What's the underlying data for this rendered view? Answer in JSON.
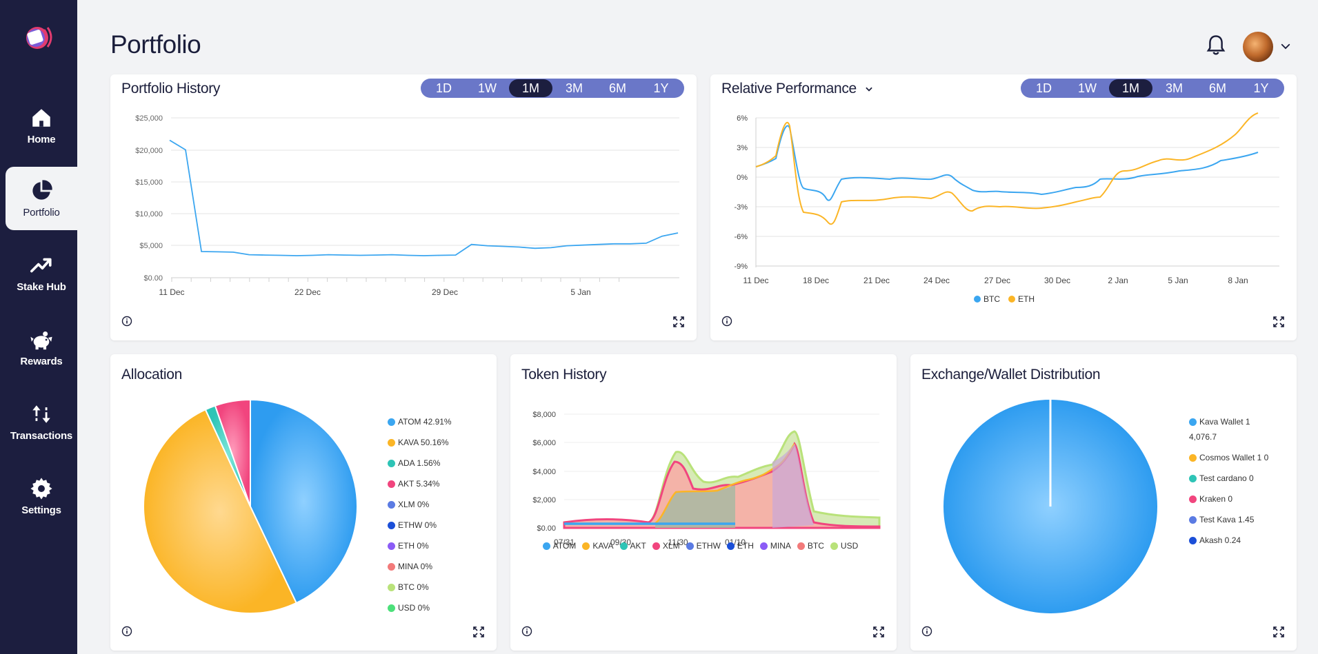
{
  "sidebar": {
    "items": [
      {
        "label": "Home",
        "icon": "home-icon"
      },
      {
        "label": "Portfolio",
        "icon": "pie-chart-icon"
      },
      {
        "label": "Stake Hub",
        "icon": "trending-up-icon"
      },
      {
        "label": "Rewards",
        "icon": "piggy-bank-icon"
      },
      {
        "label": "Transactions",
        "icon": "arrows-up-down-icon"
      },
      {
        "label": "Settings",
        "icon": "gear-icon"
      }
    ],
    "active": "Portfolio"
  },
  "header": {
    "title": "Portfolio"
  },
  "ranges": [
    "1D",
    "1W",
    "1M",
    "3M",
    "6M",
    "1Y"
  ],
  "selected_range": "1M",
  "portfolio_history": {
    "title": "Portfolio History",
    "chart_data": {
      "type": "line",
      "y_ticks": [
        "$25,000",
        "$20,000",
        "$15,000",
        "$10,000",
        "$5,000",
        "$0.00"
      ],
      "x_ticks": [
        "11 Dec",
        "22 Dec",
        "29 Dec",
        "5 Jan"
      ],
      "ylim": [
        0,
        25000
      ],
      "series": [
        {
          "color": "#3ba6f0",
          "values": [
            21500,
            20000,
            4100,
            4050,
            4000,
            3600,
            3550,
            3500,
            3450,
            3500,
            3600,
            3550,
            3500,
            3550,
            3600,
            3500,
            3450,
            3500,
            3550,
            5200,
            5000,
            4900,
            4800,
            4600,
            4700,
            5000,
            5100,
            5200,
            5300,
            5300,
            5400,
            6500,
            7000
          ]
        }
      ]
    }
  },
  "relative_performance": {
    "title": "Relative Performance",
    "chart_data": {
      "type": "line",
      "y_ticks": [
        "6%",
        "3%",
        "0%",
        "-3%",
        "-6%",
        "-9%"
      ],
      "x_ticks": [
        "11 Dec",
        "18 Dec",
        "21 Dec",
        "24 Dec",
        "27 Dec",
        "30 Dec",
        "2 Jan",
        "5 Jan",
        "8 Jan"
      ],
      "ylim": [
        -9,
        6
      ],
      "legend": [
        {
          "name": "BTC",
          "color": "#3ba6f0"
        },
        {
          "name": "ETH",
          "color": "#fbb526"
        }
      ]
    }
  },
  "allocation": {
    "title": "Allocation",
    "chart_data": {
      "type": "pie",
      "slices": [
        {
          "label": "ATOM",
          "value": 42.91,
          "color": "#3ba6f0"
        },
        {
          "label": "KAVA",
          "value": 50.16,
          "color": "#fbb526"
        },
        {
          "label": "ADA",
          "value": 1.56,
          "color": "#2ec4b6"
        },
        {
          "label": "AKT",
          "value": 5.34,
          "color": "#f1457e"
        }
      ]
    },
    "legend": [
      {
        "text": "ATOM 42.91%",
        "color": "#3ba6f0"
      },
      {
        "text": "KAVA 50.16%",
        "color": "#fbb526"
      },
      {
        "text": "ADA 1.56%",
        "color": "#2ec4b6"
      },
      {
        "text": "AKT 5.34%",
        "color": "#f1457e"
      },
      {
        "text": "XLM 0%",
        "color": "#5b7be3"
      },
      {
        "text": "ETHW 0%",
        "color": "#1b4fd8"
      },
      {
        "text": "ETH 0%",
        "color": "#8b5cf6"
      },
      {
        "text": "MINA 0%",
        "color": "#f27a7a"
      },
      {
        "text": "BTC 0%",
        "color": "#b9e27a"
      },
      {
        "text": "USD 0%",
        "color": "#4ce07a"
      }
    ]
  },
  "token_history": {
    "title": "Token History",
    "chart_data": {
      "type": "area",
      "y_ticks": [
        "$8,000",
        "$6,000",
        "$4,000",
        "$2,000",
        "$0.00"
      ],
      "x_ticks": [
        "07/31",
        "09/30",
        "11/30",
        "01/10"
      ],
      "ylim": [
        0,
        8000
      ],
      "legend": [
        {
          "name": "ATOM",
          "color": "#3ba6f0"
        },
        {
          "name": "KAVA",
          "color": "#fbb526"
        },
        {
          "name": "AKT",
          "color": "#2ec4b6"
        },
        {
          "name": "XLM",
          "color": "#f1457e"
        },
        {
          "name": "ETHW",
          "color": "#5b7be3"
        },
        {
          "name": "ETH",
          "color": "#1b4fd8"
        },
        {
          "name": "MINA",
          "color": "#8b5cf6"
        },
        {
          "name": "BTC",
          "color": "#f27a7a"
        },
        {
          "name": "USD",
          "color": "#b9e27a"
        }
      ]
    }
  },
  "exchange_distribution": {
    "title": "Exchange/Wallet Distribution",
    "chart_data": {
      "type": "pie",
      "slices": [
        {
          "label": "Kava Wallet 1",
          "value": 4076.7,
          "color": "#3ba6f0"
        },
        {
          "label": "Cosmos Wallet 1",
          "value": 0,
          "color": "#fbb526"
        },
        {
          "label": "Test cardano",
          "value": 0,
          "color": "#2ec4b6"
        },
        {
          "label": "Kraken",
          "value": 0,
          "color": "#f1457e"
        },
        {
          "label": "Test Kava",
          "value": 1.45,
          "color": "#5b7be3"
        },
        {
          "label": "Akash",
          "value": 0.24,
          "color": "#1b4fd8"
        }
      ]
    },
    "legend": [
      {
        "text": "Kava Wallet 1",
        "text2": "4,076.7",
        "color": "#3ba6f0"
      },
      {
        "text": "Cosmos Wallet 1 0",
        "color": "#fbb526"
      },
      {
        "text": "Test cardano 0",
        "color": "#2ec4b6"
      },
      {
        "text": "Kraken 0",
        "color": "#f1457e"
      },
      {
        "text": "Test Kava 1.45",
        "color": "#5b7be3"
      },
      {
        "text": "Akash 0.24",
        "color": "#1b4fd8"
      }
    ]
  }
}
